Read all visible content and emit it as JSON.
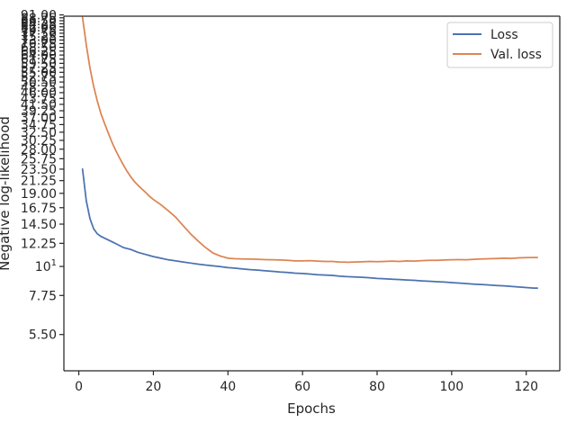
{
  "chart_data": {
    "type": "line",
    "title": "",
    "xlabel": "Epochs",
    "ylabel": "Negative log-likelihood",
    "xlim": [
      -4,
      129
    ],
    "ylim": [
      4,
      90
    ],
    "yscale": "log",
    "x_ticks": [
      0,
      20,
      40,
      60,
      80,
      100,
      120
    ],
    "y_ticks": [
      {
        "value": 5.5,
        "label": "5.50"
      },
      {
        "value": 7.75,
        "label": "7.75"
      },
      {
        "value": 10,
        "label": "10^1"
      },
      {
        "value": 12.25,
        "label": "12.25"
      },
      {
        "value": 14.5,
        "label": "14.50"
      },
      {
        "value": 16.75,
        "label": "16.75"
      },
      {
        "value": 19.0,
        "label": "19.00"
      },
      {
        "value": 21.25,
        "label": "21.25"
      },
      {
        "value": 23.5,
        "label": "23.50"
      },
      {
        "value": 25.75,
        "label": "25.75"
      },
      {
        "value": 28.0,
        "label": "28.00"
      },
      {
        "value": 30.25,
        "label": "30.25"
      },
      {
        "value": 32.5,
        "label": "32.50"
      },
      {
        "value": 34.75,
        "label": "34.75"
      },
      {
        "value": 37.0,
        "label": "37.00"
      },
      {
        "value": 39.25,
        "label": "39.25"
      },
      {
        "value": 41.5,
        "label": "41.50"
      },
      {
        "value": 43.75,
        "label": "43.75"
      },
      {
        "value": 46.0,
        "label": "46.00"
      },
      {
        "value": 48.25,
        "label": "48.25"
      },
      {
        "value": 50.5,
        "label": "50.50"
      },
      {
        "value": 52.75,
        "label": "52.75"
      },
      {
        "value": 55.0,
        "label": "55.00"
      },
      {
        "value": 57.25,
        "label": "57.25"
      },
      {
        "value": 59.5,
        "label": "59.50"
      },
      {
        "value": 61.75,
        "label": "61.75"
      },
      {
        "value": 64.0,
        "label": "64.00"
      },
      {
        "value": 66.25,
        "label": "66.25"
      },
      {
        "value": 68.5,
        "label": "68.50"
      },
      {
        "value": 70.75,
        "label": "70.75"
      },
      {
        "value": 73.0,
        "label": "73.00"
      },
      {
        "value": 75.25,
        "label": "75.25"
      },
      {
        "value": 77.5,
        "label": "77.50"
      },
      {
        "value": 79.75,
        "label": "79.75"
      },
      {
        "value": 82.0,
        "label": "82.00"
      },
      {
        "value": 84.25,
        "label": "84.25"
      },
      {
        "value": 86.5,
        "label": "86.50"
      },
      {
        "value": 88.75,
        "label": "88.75"
      },
      {
        "value": 91.0,
        "label": "91.00"
      }
    ],
    "legend": {
      "placement": "top-right"
    },
    "grid": false,
    "series": [
      {
        "name": "Loss",
        "color": "#4c72b0",
        "x": [
          1,
          2,
          3,
          4,
          5,
          6,
          7,
          8,
          9,
          10,
          11,
          12,
          13,
          14,
          15,
          16,
          17,
          18,
          19,
          20,
          22,
          24,
          26,
          28,
          30,
          32,
          34,
          36,
          38,
          40,
          42,
          44,
          46,
          48,
          50,
          52,
          54,
          56,
          58,
          60,
          62,
          64,
          66,
          68,
          70,
          72,
          74,
          76,
          78,
          80,
          82,
          84,
          86,
          88,
          90,
          92,
          94,
          96,
          98,
          100,
          102,
          104,
          106,
          108,
          110,
          112,
          114,
          116,
          118,
          120,
          122,
          123
        ],
        "values": [
          23.5,
          17.8,
          15.2,
          13.9,
          13.3,
          13.0,
          12.8,
          12.6,
          12.4,
          12.2,
          12.0,
          11.8,
          11.7,
          11.6,
          11.45,
          11.3,
          11.2,
          11.1,
          11.0,
          10.9,
          10.75,
          10.6,
          10.5,
          10.4,
          10.3,
          10.2,
          10.12,
          10.05,
          9.98,
          9.9,
          9.85,
          9.78,
          9.72,
          9.68,
          9.63,
          9.58,
          9.52,
          9.48,
          9.43,
          9.4,
          9.35,
          9.3,
          9.27,
          9.24,
          9.18,
          9.14,
          9.12,
          9.09,
          9.05,
          9.0,
          8.97,
          8.94,
          8.91,
          8.88,
          8.85,
          8.81,
          8.78,
          8.75,
          8.72,
          8.68,
          8.64,
          8.6,
          8.56,
          8.53,
          8.5,
          8.46,
          8.43,
          8.39,
          8.35,
          8.31,
          8.27,
          8.27
        ]
      },
      {
        "name": "Val. loss",
        "color": "#dd8452",
        "x": [
          1,
          2,
          3,
          4,
          5,
          6,
          7,
          8,
          9,
          10,
          11,
          12,
          13,
          14,
          15,
          16,
          17,
          18,
          19,
          20,
          22,
          24,
          26,
          28,
          30,
          32,
          34,
          36,
          38,
          40,
          42,
          44,
          46,
          48,
          50,
          52,
          54,
          56,
          58,
          60,
          62,
          64,
          66,
          68,
          70,
          72,
          74,
          76,
          78,
          80,
          82,
          84,
          86,
          88,
          90,
          92,
          94,
          96,
          98,
          100,
          102,
          104,
          106,
          108,
          110,
          112,
          114,
          116,
          118,
          120,
          122,
          123
        ],
        "values": [
          89,
          70,
          57,
          48.5,
          42.5,
          38,
          34.8,
          32,
          29.5,
          27.5,
          25.8,
          24.3,
          23,
          21.9,
          21,
          20.3,
          19.7,
          19.1,
          18.5,
          18,
          17.2,
          16.3,
          15.4,
          14.3,
          13.3,
          12.5,
          11.8,
          11.25,
          10.95,
          10.75,
          10.7,
          10.68,
          10.67,
          10.65,
          10.62,
          10.6,
          10.58,
          10.55,
          10.5,
          10.5,
          10.52,
          10.48,
          10.45,
          10.45,
          10.4,
          10.38,
          10.4,
          10.42,
          10.45,
          10.43,
          10.45,
          10.48,
          10.45,
          10.5,
          10.48,
          10.52,
          10.55,
          10.55,
          10.58,
          10.6,
          10.62,
          10.6,
          10.65,
          10.68,
          10.7,
          10.72,
          10.75,
          10.73,
          10.78,
          10.8,
          10.82,
          10.82
        ]
      }
    ]
  }
}
